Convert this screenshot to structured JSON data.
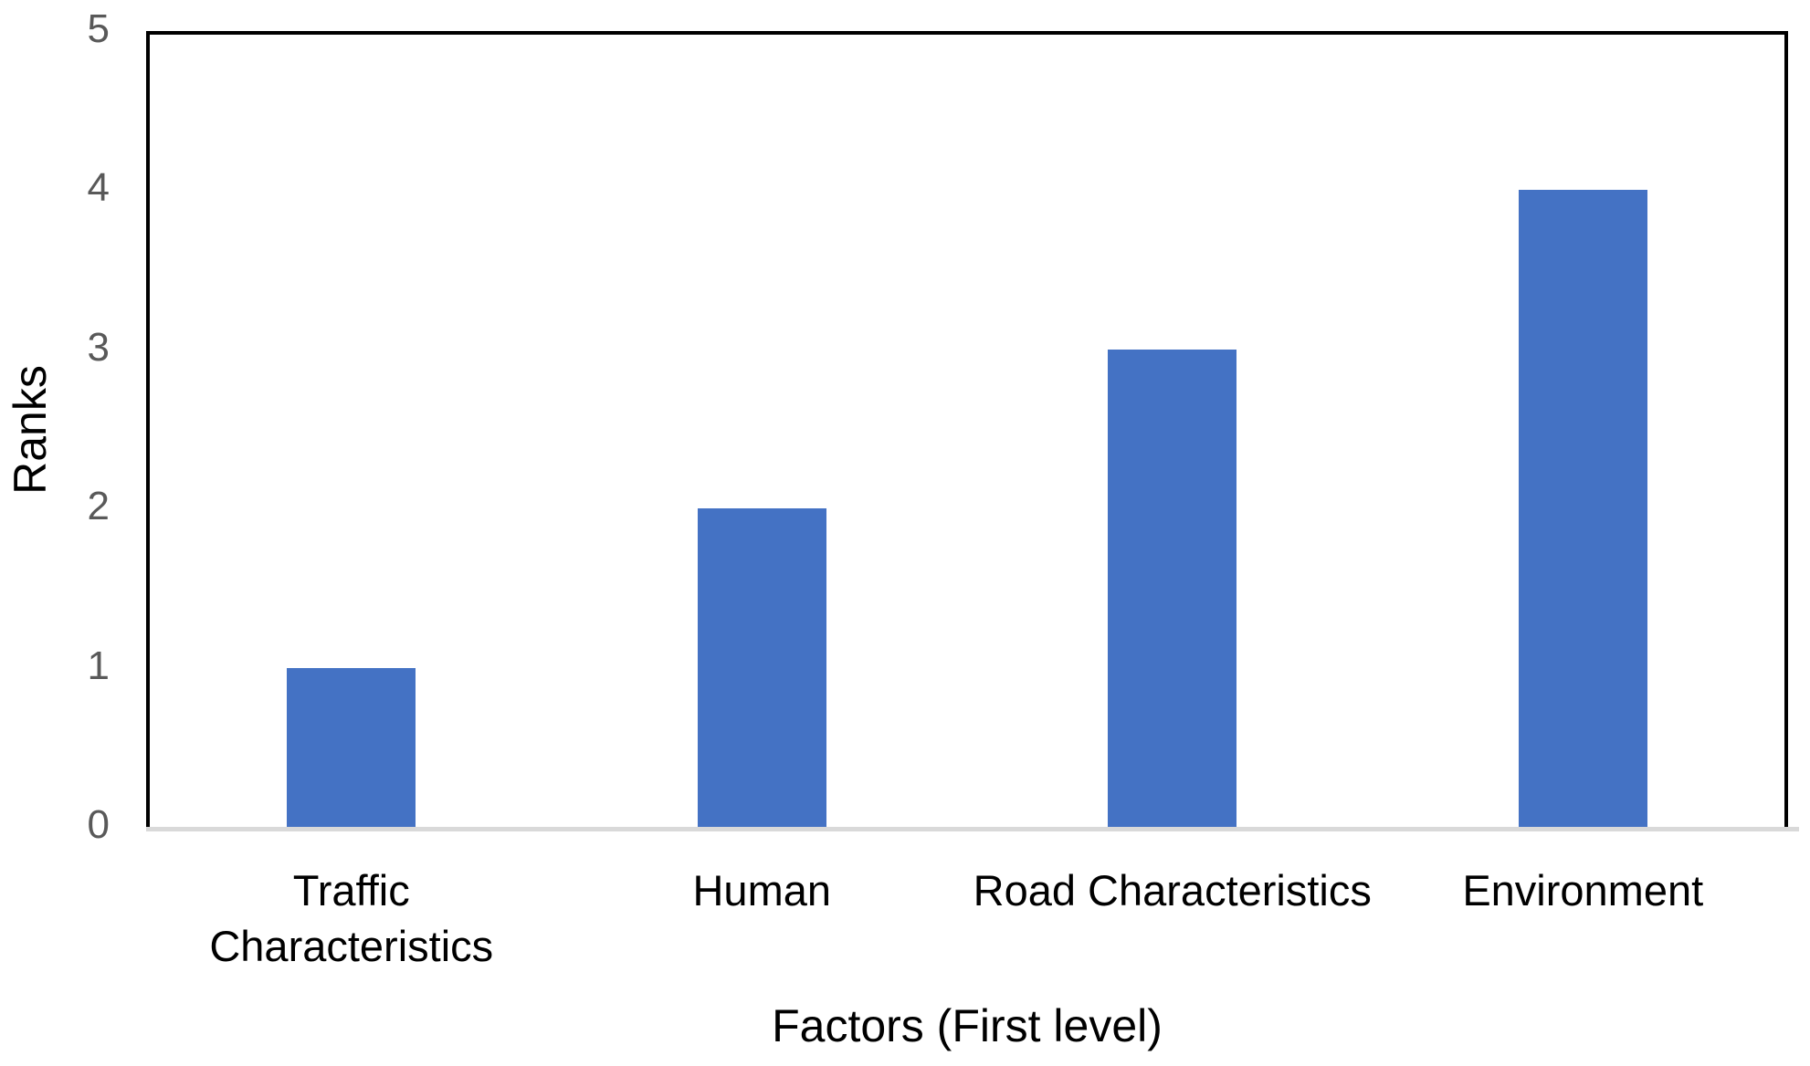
{
  "chart_data": {
    "type": "bar",
    "categories": [
      "Traffic\nCharacteristics",
      "Human",
      "Road Characteristics",
      "Environment"
    ],
    "values": [
      1,
      2,
      3,
      4
    ],
    "title": "",
    "xlabel": "Factors (First level)",
    "ylabel": "Ranks",
    "ylim": [
      0,
      5
    ],
    "yticks": [
      0,
      1,
      2,
      3,
      4,
      5
    ],
    "grid": false,
    "legend": "none",
    "bar_color": "#4472C4",
    "tick_label_color": "#595959",
    "axis_line_color": "#D9D9D9",
    "plot_border_color": "#000000"
  }
}
